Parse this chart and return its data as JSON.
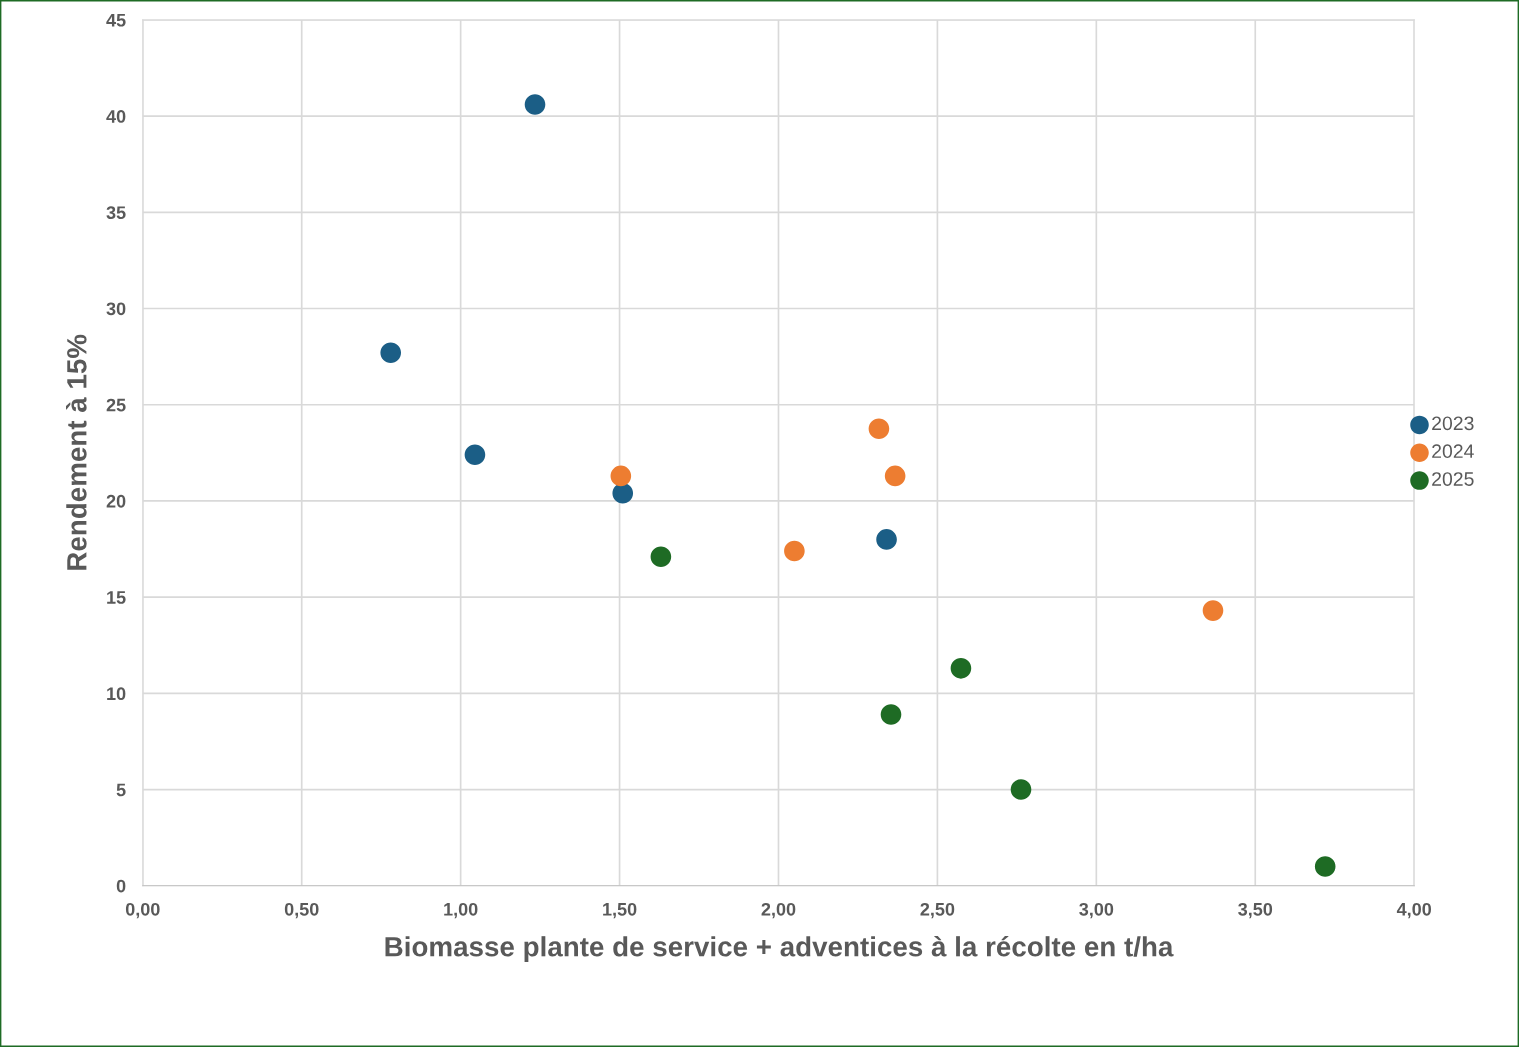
{
  "chart_data": {
    "type": "scatter",
    "xlabel": "Biomasse plante de service + adventices à la récolte en t/ha",
    "ylabel": "Rendement à 15%",
    "xlim": [
      0,
      4
    ],
    "ylim": [
      0,
      45
    ],
    "xticks": [
      {
        "value": 0,
        "label": "0,00"
      },
      {
        "value": 0.5,
        "label": "0,50"
      },
      {
        "value": 1,
        "label": "1,00"
      },
      {
        "value": 1.5,
        "label": "1,50"
      },
      {
        "value": 2,
        "label": "2,00"
      },
      {
        "value": 2.5,
        "label": "2,50"
      },
      {
        "value": 3,
        "label": "3,00"
      },
      {
        "value": 3.5,
        "label": "3,50"
      },
      {
        "value": 4,
        "label": "4,00"
      }
    ],
    "yticks": [
      0,
      5,
      10,
      15,
      20,
      25,
      30,
      35,
      40,
      45
    ],
    "grid": true,
    "legend": "right",
    "marker": "circle",
    "series": [
      {
        "name": "2023",
        "color": "#1b5e86",
        "x": [
          0.78,
          1.045,
          1.234,
          1.51,
          2.34
        ],
        "values": [
          27.7,
          22.4,
          40.6,
          20.4,
          18.0
        ]
      },
      {
        "name": "2024",
        "color": "#ed7d31",
        "x": [
          1.504,
          2.316,
          2.367,
          2.05,
          3.367
        ],
        "values": [
          21.3,
          23.75,
          21.3,
          17.4,
          14.3
        ]
      },
      {
        "name": "2025",
        "color": "#1e6b24",
        "x": [
          1.63,
          2.574,
          2.354,
          2.763,
          3.72
        ],
        "values": [
          17.1,
          11.3,
          8.9,
          5.0,
          1.0
        ]
      }
    ]
  }
}
